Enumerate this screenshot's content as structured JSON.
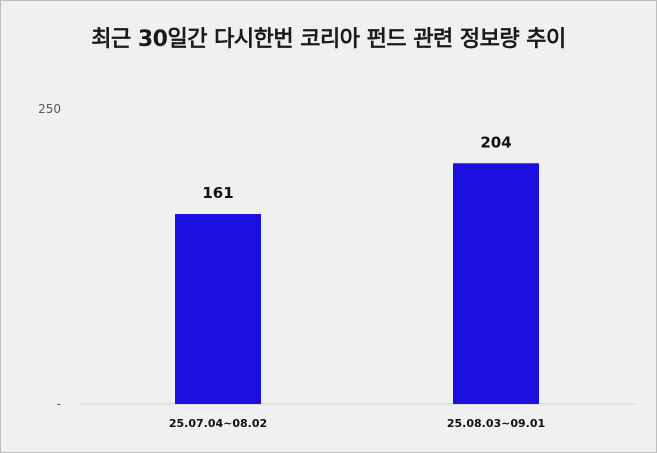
{
  "chart_data": {
    "type": "bar",
    "title": "최근 30일간 다시한번 코리아 펀드 관련 정보량 추이",
    "categories": [
      "25.07.04~08.02",
      "25.08.03~09.01"
    ],
    "values": [
      161,
      204
    ],
    "xlabel": "",
    "ylabel": "",
    "ylim": [
      0,
      250
    ],
    "y_tick_labels": [
      "-",
      "250"
    ],
    "bar_color": "#1c10e0",
    "grid": false,
    "legend": "none"
  }
}
